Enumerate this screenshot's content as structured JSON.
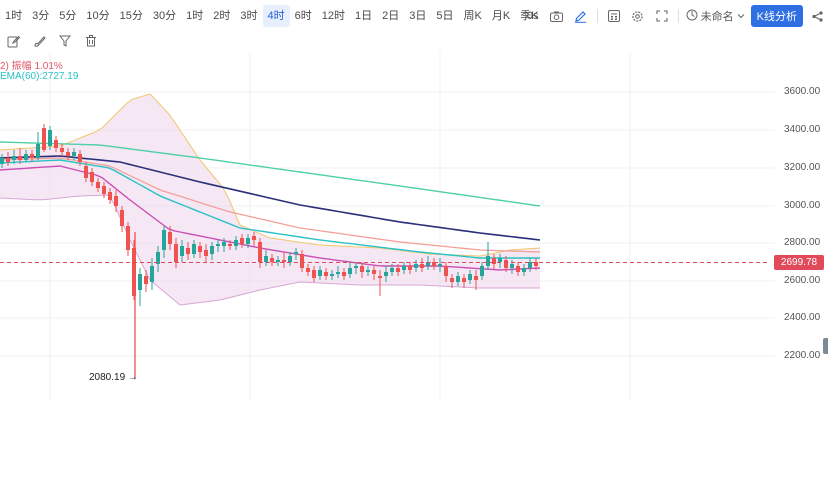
{
  "intervals": [
    {
      "label": "1时",
      "active": false
    },
    {
      "label": "3分",
      "active": false
    },
    {
      "label": "5分",
      "active": false
    },
    {
      "label": "10分",
      "active": false
    },
    {
      "label": "15分",
      "active": false
    },
    {
      "label": "30分",
      "active": false
    },
    {
      "label": "1时",
      "active": false
    },
    {
      "label": "2时",
      "active": false
    },
    {
      "label": "3时",
      "active": false
    },
    {
      "label": "4时",
      "active": true
    },
    {
      "label": "6时",
      "active": false
    },
    {
      "label": "12时",
      "active": false
    },
    {
      "label": "1日",
      "active": false
    },
    {
      "label": "2日",
      "active": false
    },
    {
      "label": "3日",
      "active": false
    },
    {
      "label": "5日",
      "active": false
    },
    {
      "label": "周K",
      "active": false
    },
    {
      "label": "月K",
      "active": false
    },
    {
      "label": "季K",
      "active": false
    }
  ],
  "toolbar_right": {
    "countdown": "0s",
    "layout_name": "未命名",
    "kline_button": "K线分析"
  },
  "indicators": {
    "line1": "2)  振幅 1.01%",
    "line2": "EMA(60):2727.19"
  },
  "price_axis": [
    "3600.00",
    "3400.00",
    "3200.00",
    "3000.00",
    "2800.00",
    "2600.00",
    "2400.00",
    "2200.00"
  ],
  "last_price": "2699.78",
  "low_marker": "2080.19 →",
  "colors": {
    "up": "#26a69a",
    "down": "#ef5350",
    "last_price": "#e04a5a",
    "ema60": "#29c2c6",
    "bollinger_fill": "#ecd3ea",
    "bollinger_upper": "#f3c66b",
    "ma_navy": "#2a2f7a",
    "ma_salmon": "#f2a19a",
    "ma_green": "#4ed0a8",
    "ma_magenta": "#c94fb6"
  },
  "icons": [
    "camera-icon",
    "pencil-icon",
    "calculator-icon",
    "gear-icon",
    "fullscreen-icon",
    "layout-icon",
    "share-icon",
    "edit-icon",
    "brush-icon",
    "filter-icon",
    "trash-icon"
  ]
}
